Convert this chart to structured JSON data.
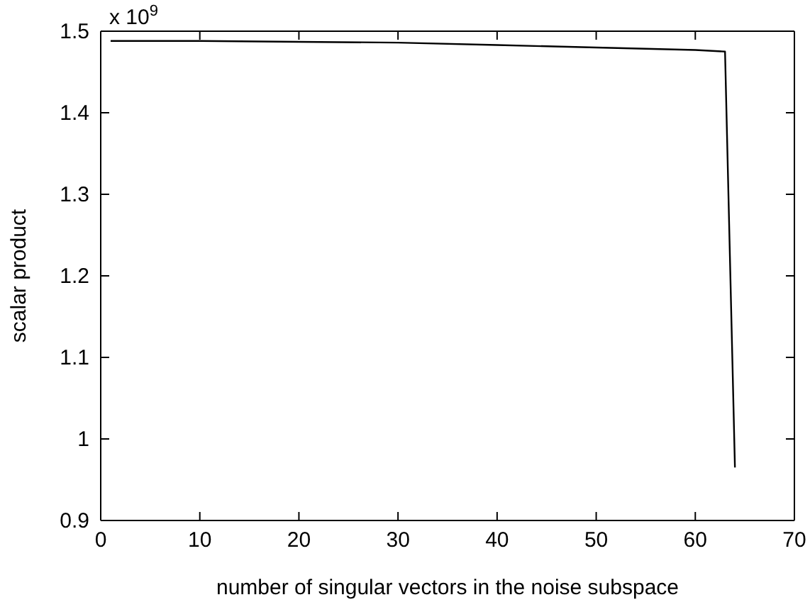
{
  "chart_data": {
    "type": "line",
    "xlabel": "number of singular vectors in the noise subspace",
    "ylabel": "scalar product",
    "annotations": [
      "x 10$^{9}$"
    ],
    "x": [
      1,
      10,
      20,
      30,
      40,
      50,
      60,
      63,
      64
    ],
    "series": [
      {
        "color": "#000000",
        "values": [
          1.488,
          1.488,
          1.487,
          1.486,
          1.483,
          1.48,
          1.477,
          1.475,
          0.965
        ]
      }
    ],
    "xlim": [
      0,
      70
    ],
    "xticks": [
      0,
      10,
      20,
      30,
      40,
      50,
      60,
      70
    ],
    "ylim": [
      0.9,
      1.5
    ],
    "yticks": [
      0.9,
      1,
      1.1,
      1.2,
      1.3,
      1.4,
      1.5
    ],
    "grid": false,
    "marker": "none",
    "line_style": "solid"
  }
}
